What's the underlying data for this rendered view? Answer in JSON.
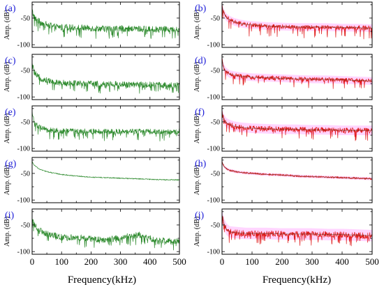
{
  "chart_data": [
    {
      "panel_label": "(a)",
      "type": "line",
      "xlabel": "",
      "ylabel": "Amp. (dB)",
      "xlim": [
        0,
        500
      ],
      "ylim": [
        -105,
        -20
      ],
      "x_ticks": [],
      "y_ticks": [
        -50,
        -100
      ],
      "line_color": "#2e8b2e",
      "noise_band": false,
      "noise_color": "",
      "series": [
        {
          "x": [
            0,
            3,
            8,
            15,
            25,
            40,
            60,
            80,
            100,
            150,
            200,
            250,
            300,
            350,
            400,
            450,
            500
          ],
          "y": [
            -35,
            -42,
            -49,
            -53,
            -57,
            -61,
            -64,
            -66,
            -67,
            -68,
            -69,
            -70,
            -70,
            -70,
            -71,
            -71,
            -72
          ],
          "noise": 6,
          "spikes": 0.14,
          "spike_depth": 20
        }
      ]
    },
    {
      "panel_label": "(b)",
      "type": "line",
      "xlabel": "",
      "ylabel": "Amp. (dB)",
      "xlim": [
        0,
        500
      ],
      "ylim": [
        -105,
        -20
      ],
      "x_ticks": [],
      "y_ticks": [
        -50,
        -100
      ],
      "line_color": "#e01b1b",
      "noise_band": true,
      "noise_color": "#ff88ff",
      "series": [
        {
          "x": [
            0,
            3,
            8,
            15,
            25,
            40,
            60,
            80,
            100,
            150,
            200,
            250,
            300,
            350,
            400,
            450,
            500
          ],
          "y": [
            -28,
            -35,
            -43,
            -49,
            -53,
            -57,
            -60,
            -62,
            -63,
            -65,
            -66,
            -67,
            -67,
            -67,
            -68,
            -68,
            -69
          ],
          "noise": 4,
          "spikes": 0.1,
          "spike_depth": 22
        }
      ]
    },
    {
      "panel_label": "(c)",
      "type": "line",
      "xlabel": "",
      "ylabel": "Amp. (dB)",
      "xlim": [
        0,
        500
      ],
      "ylim": [
        -105,
        -20
      ],
      "x_ticks": [],
      "y_ticks": [
        -50,
        -100
      ],
      "line_color": "#2e8b2e",
      "noise_band": false,
      "noise_color": "",
      "series": [
        {
          "x": [
            0,
            3,
            8,
            15,
            25,
            40,
            60,
            80,
            100,
            150,
            200,
            250,
            300,
            350,
            400,
            450,
            500
          ],
          "y": [
            -38,
            -45,
            -54,
            -60,
            -64,
            -67,
            -70,
            -72,
            -73,
            -74,
            -75,
            -76,
            -76,
            -77,
            -77,
            -78,
            -78
          ],
          "noise": 6,
          "spikes": 0.15,
          "spike_depth": 18
        }
      ]
    },
    {
      "panel_label": "(d)",
      "type": "line",
      "xlabel": "",
      "ylabel": "Amp. (dB)",
      "xlim": [
        0,
        500
      ],
      "ylim": [
        -105,
        -20
      ],
      "x_ticks": [],
      "y_ticks": [
        -50,
        -100
      ],
      "line_color": "#e01b1b",
      "noise_band": true,
      "noise_color": "#ff88ff",
      "series": [
        {
          "x": [
            0,
            3,
            8,
            15,
            25,
            40,
            60,
            80,
            100,
            150,
            200,
            250,
            300,
            350,
            400,
            450,
            500
          ],
          "y": [
            -30,
            -40,
            -48,
            -53,
            -57,
            -59,
            -61,
            -62,
            -63,
            -64,
            -65,
            -66,
            -67,
            -67,
            -68,
            -69,
            -70
          ],
          "noise": 4,
          "spikes": 0.07,
          "spike_depth": 18
        }
      ]
    },
    {
      "panel_label": "(e)",
      "type": "line",
      "xlabel": "",
      "ylabel": "Amp. (dB)",
      "xlim": [
        0,
        500
      ],
      "ylim": [
        -105,
        -20
      ],
      "x_ticks": [],
      "y_ticks": [
        -50,
        -100
      ],
      "line_color": "#2e8b2e",
      "noise_band": false,
      "noise_color": "",
      "series": [
        {
          "x": [
            0,
            3,
            8,
            15,
            25,
            40,
            60,
            80,
            100,
            150,
            200,
            250,
            300,
            350,
            400,
            450,
            500
          ],
          "y": [
            -32,
            -40,
            -50,
            -56,
            -60,
            -63,
            -65,
            -66,
            -67,
            -67,
            -68,
            -68,
            -68,
            -68,
            -68,
            -69,
            -69
          ],
          "noise": 5,
          "spikes": 0.12,
          "spike_depth": 18
        }
      ]
    },
    {
      "panel_label": "(f)",
      "type": "line",
      "xlabel": "",
      "ylabel": "Amp. (dB)",
      "xlim": [
        0,
        500
      ],
      "ylim": [
        -105,
        -20
      ],
      "x_ticks": [],
      "y_ticks": [
        -50,
        -100
      ],
      "line_color": "#e01b1b",
      "noise_band": true,
      "noise_color": "#ff88ff",
      "series": [
        {
          "x": [
            0,
            3,
            8,
            15,
            25,
            40,
            60,
            80,
            100,
            150,
            200,
            250,
            300,
            350,
            400,
            450,
            500
          ],
          "y": [
            -32,
            -40,
            -47,
            -52,
            -55,
            -58,
            -60,
            -61,
            -62,
            -63,
            -64,
            -64,
            -65,
            -65,
            -66,
            -66,
            -66
          ],
          "noise": 5,
          "spikes": 0.1,
          "spike_depth": 20
        }
      ]
    },
    {
      "panel_label": "(g)",
      "type": "line",
      "xlabel": "",
      "ylabel": "Amp. (dB)",
      "xlim": [
        0,
        500
      ],
      "ylim": [
        -105,
        -20
      ],
      "x_ticks": [],
      "y_ticks": [
        -50,
        -100
      ],
      "line_color": "#2e8b2e",
      "noise_band": false,
      "noise_color": "",
      "series": [
        {
          "x": [
            0,
            3,
            8,
            15,
            25,
            40,
            60,
            80,
            100,
            150,
            200,
            250,
            300,
            350,
            400,
            450,
            500
          ],
          "y": [
            -28,
            -31,
            -35,
            -38,
            -42,
            -45,
            -48,
            -50,
            -52,
            -55,
            -57,
            -58,
            -59,
            -60,
            -61,
            -62,
            -62
          ],
          "noise": 0.8,
          "spikes": 0,
          "spike_depth": 0
        }
      ]
    },
    {
      "panel_label": "(h)",
      "type": "line",
      "xlabel": "",
      "ylabel": "Amp. (dB)",
      "xlim": [
        0,
        500
      ],
      "ylim": [
        -105,
        -20
      ],
      "x_ticks": [],
      "y_ticks": [
        -50,
        -100
      ],
      "line_color": "#e01b1b",
      "noise_band": true,
      "noise_color": "#ff88ff",
      "series": [
        {
          "x": [
            0,
            3,
            8,
            15,
            25,
            40,
            60,
            80,
            100,
            150,
            200,
            250,
            300,
            350,
            400,
            450,
            500
          ],
          "y": [
            -28,
            -33,
            -38,
            -41,
            -44,
            -46,
            -48,
            -49,
            -50,
            -52,
            -53,
            -55,
            -56,
            -57,
            -58,
            -59,
            -60
          ],
          "noise": 1.5,
          "spikes": 0,
          "spike_depth": 0
        }
      ]
    },
    {
      "panel_label": "(i)",
      "type": "line",
      "xlabel": "",
      "ylabel": "Amp. (dB)",
      "xlim": [
        0,
        500
      ],
      "ylim": [
        -105,
        -20
      ],
      "x_ticks": [
        0,
        100,
        200,
        300,
        400,
        500
      ],
      "y_ticks": [
        -50,
        -100
      ],
      "line_color": "#2e8b2e",
      "noise_band": false,
      "noise_color": "",
      "series": [
        {
          "x": [
            0,
            3,
            8,
            15,
            25,
            40,
            60,
            80,
            100,
            150,
            200,
            250,
            300,
            320,
            340,
            360,
            380,
            400,
            420,
            450,
            500
          ],
          "y": [
            -35,
            -42,
            -50,
            -55,
            -60,
            -65,
            -68,
            -70,
            -72,
            -74,
            -76,
            -78,
            -74,
            -71,
            -73,
            -68,
            -71,
            -75,
            -78,
            -80,
            -81
          ],
          "noise": 6,
          "spikes": 0.13,
          "spike_depth": 18
        }
      ]
    },
    {
      "panel_label": "(j)",
      "type": "line",
      "xlabel": "",
      "ylabel": "Amp. (dB)",
      "xlim": [
        0,
        500
      ],
      "ylim": [
        -105,
        -20
      ],
      "x_ticks": [
        0,
        100,
        200,
        300,
        400,
        500
      ],
      "y_ticks": [
        -50,
        -100
      ],
      "line_color": "#e01b1b",
      "noise_band": true,
      "noise_color": "#ff88ff",
      "series": [
        {
          "x": [
            0,
            3,
            8,
            15,
            25,
            40,
            60,
            80,
            100,
            150,
            200,
            250,
            300,
            350,
            400,
            450,
            500
          ],
          "y": [
            -30,
            -40,
            -50,
            -58,
            -63,
            -64,
            -65,
            -66,
            -66,
            -66,
            -67,
            -67,
            -67,
            -68,
            -68,
            -69,
            -70
          ],
          "noise": 6,
          "spikes": 0.15,
          "spike_depth": 22
        }
      ]
    }
  ],
  "figure": {
    "xlabel_left": "Frequency(kHz)",
    "xlabel_right": "Frequency(kHz)",
    "panel_label_color": "#1a1ad8"
  }
}
